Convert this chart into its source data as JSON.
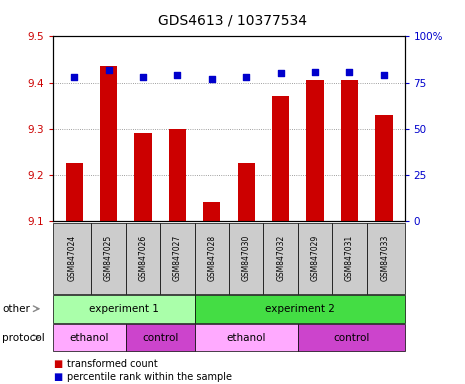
{
  "title": "GDS4613 / 10377534",
  "samples": [
    "GSM847024",
    "GSM847025",
    "GSM847026",
    "GSM847027",
    "GSM847028",
    "GSM847030",
    "GSM847032",
    "GSM847029",
    "GSM847031",
    "GSM847033"
  ],
  "transformed_count": [
    9.225,
    9.435,
    9.29,
    9.3,
    9.14,
    9.225,
    9.37,
    9.405,
    9.405,
    9.33
  ],
  "percentile_rank": [
    78,
    82,
    78,
    79,
    77,
    78,
    80,
    81,
    81,
    79
  ],
  "ylim_left": [
    9.1,
    9.5
  ],
  "ylim_right": [
    0,
    100
  ],
  "yticks_left": [
    9.1,
    9.2,
    9.3,
    9.4,
    9.5
  ],
  "yticks_right": [
    0,
    25,
    50,
    75,
    100
  ],
  "bar_color": "#cc0000",
  "dot_color": "#0000cc",
  "bar_bottom": 9.1,
  "exp1_color": "#aaffaa",
  "exp2_color": "#44dd44",
  "ethanol_color": "#ffaaff",
  "control_color": "#cc44cc",
  "sample_bg_color": "#cccccc",
  "label_color_left": "#cc0000",
  "label_color_right": "#0000cc"
}
